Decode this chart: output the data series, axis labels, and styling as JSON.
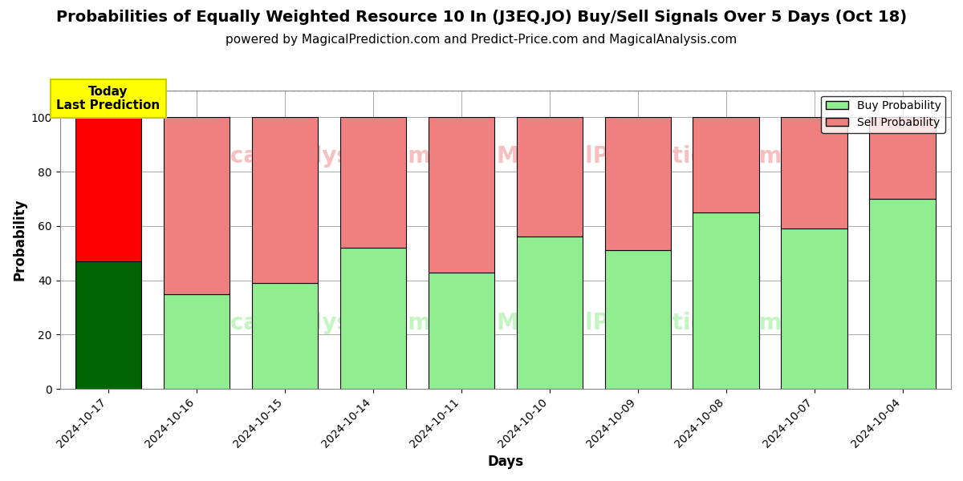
{
  "title": "Probabilities of Equally Weighted Resource 10 In (J3EQ.JO) Buy/Sell Signals Over 5 Days (Oct 18)",
  "subtitle": "powered by MagicalPrediction.com and Predict-Price.com and MagicalAnalysis.com",
  "xlabel": "Days",
  "ylabel": "Probability",
  "categories": [
    "2024-10-17",
    "2024-10-16",
    "2024-10-15",
    "2024-10-14",
    "2024-10-11",
    "2024-10-10",
    "2024-10-09",
    "2024-10-08",
    "2024-10-07",
    "2024-10-04"
  ],
  "buy_values": [
    47,
    35,
    39,
    52,
    43,
    56,
    51,
    65,
    59,
    70
  ],
  "sell_values": [
    53,
    65,
    61,
    48,
    57,
    44,
    49,
    35,
    41,
    30
  ],
  "today_bar_buy_color": "#006400",
  "today_bar_sell_color": "#FF0000",
  "normal_bar_buy_color": "#90EE90",
  "normal_bar_sell_color": "#F08080",
  "bar_edge_color": "#000000",
  "today_annotation_text": "Today\nLast Prediction",
  "today_annotation_bg": "#FFFF00",
  "today_annotation_border": "#CCCC00",
  "legend_buy_label": "Buy Probability",
  "legend_sell_label": "Sell Probability",
  "ylim": [
    0,
    110
  ],
  "yticks": [
    0,
    20,
    40,
    60,
    80,
    100
  ],
  "dashed_line_y": 110,
  "background_color": "#ffffff",
  "grid_color": "#aaaaaa",
  "title_fontsize": 14,
  "subtitle_fontsize": 11,
  "axis_label_fontsize": 12,
  "tick_fontsize": 10,
  "bar_width": 0.75
}
